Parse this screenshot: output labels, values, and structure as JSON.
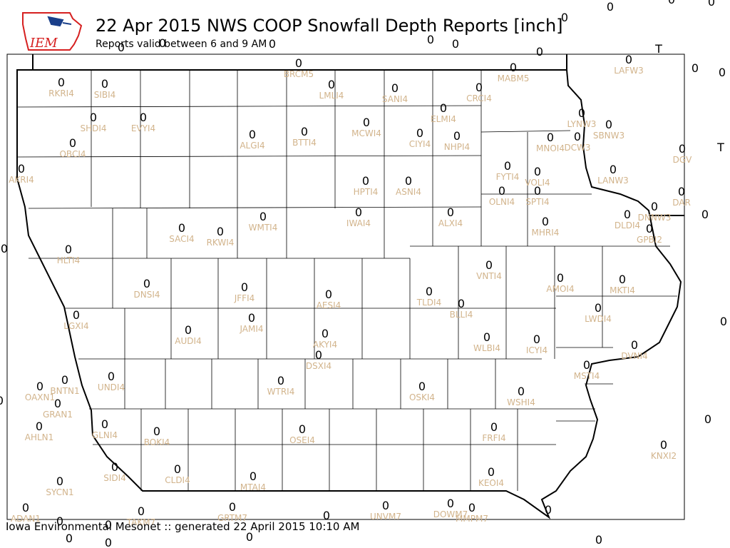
{
  "header": {
    "title": "22 Apr 2015 NWS COOP Snowfall Depth Reports [inch]",
    "subtitle": "Reports valid between 6 and 9 AM",
    "logo_text": "IEM"
  },
  "footer": {
    "text": "Iowa Environmental Mesonet :: generated 22 April 2015 10:10 AM"
  },
  "colors": {
    "label": "#d2b48c",
    "value": "#000000",
    "logo_red": "#d62020",
    "logo_blue": "#1a3f8a"
  },
  "stations": [
    {
      "id": "RKRI4",
      "value": "0"
    },
    {
      "id": "SIBI4",
      "value": "0"
    },
    {
      "id": "SHDI4",
      "value": "0"
    },
    {
      "id": "EVYI4",
      "value": "0"
    },
    {
      "id": "OBCI4",
      "value": "0"
    },
    {
      "id": "AKRI4",
      "value": "0"
    },
    {
      "id": "BRCM5",
      "value": "0"
    },
    {
      "id": "LMLI4",
      "value": "0"
    },
    {
      "id": "SANI4",
      "value": "0"
    },
    {
      "id": "CRCI4",
      "value": "0"
    },
    {
      "id": "MABM5",
      "value": "0"
    },
    {
      "id": "LAFW3",
      "value": "0"
    },
    {
      "id": "ALGI4",
      "value": "0"
    },
    {
      "id": "BTTI4",
      "value": "0"
    },
    {
      "id": "MCWI4",
      "value": "0"
    },
    {
      "id": "ELMI4",
      "value": "0"
    },
    {
      "id": "CIYI4",
      "value": "0"
    },
    {
      "id": "NHPI4",
      "value": "0"
    },
    {
      "id": "MNOI4",
      "value": "0"
    },
    {
      "id": "DCW3",
      "value": "0"
    },
    {
      "id": "LYNW3",
      "value": "0"
    },
    {
      "id": "SBNW3",
      "value": "0"
    },
    {
      "id": "DGV",
      "value": "0"
    },
    {
      "id": "HPTI4",
      "value": "0"
    },
    {
      "id": "ASNI4",
      "value": "0"
    },
    {
      "id": "FYTI4",
      "value": "0"
    },
    {
      "id": "VOLI4",
      "value": "0"
    },
    {
      "id": "OLNI4",
      "value": "0"
    },
    {
      "id": "SPTI4",
      "value": "0"
    },
    {
      "id": "LANW3",
      "value": "0"
    },
    {
      "id": "DAR",
      "value": "0"
    },
    {
      "id": "DNNW3",
      "value": "0"
    },
    {
      "id": "DLDI4",
      "value": "0"
    },
    {
      "id": "GPBI2",
      "value": "0"
    },
    {
      "id": "SACI4",
      "value": "0"
    },
    {
      "id": "RKWI4",
      "value": "0"
    },
    {
      "id": "WMTI4",
      "value": "0"
    },
    {
      "id": "IWAI4",
      "value": "0"
    },
    {
      "id": "ALXI4",
      "value": "0"
    },
    {
      "id": "MHRI4",
      "value": "0"
    },
    {
      "id": "HLTI4",
      "value": "0"
    },
    {
      "id": "VNTI4",
      "value": "0"
    },
    {
      "id": "AMOI4",
      "value": "0"
    },
    {
      "id": "MKTI4",
      "value": "0"
    },
    {
      "id": "DNSI4",
      "value": "0"
    },
    {
      "id": "JFFI4",
      "value": "0"
    },
    {
      "id": "AESI4",
      "value": "0"
    },
    {
      "id": "TLDI4",
      "value": "0"
    },
    {
      "id": "BLLI4",
      "value": "0"
    },
    {
      "id": "LWDI4",
      "value": "0"
    },
    {
      "id": "LGXI4",
      "value": "0"
    },
    {
      "id": "AUDI4",
      "value": "0"
    },
    {
      "id": "JAMI4",
      "value": "0"
    },
    {
      "id": "AKYI4",
      "value": "0"
    },
    {
      "id": "WLBI4",
      "value": "0"
    },
    {
      "id": "ICYI4",
      "value": "0"
    },
    {
      "id": "DVNI4",
      "value": "0"
    },
    {
      "id": "DSXI4",
      "value": "0"
    },
    {
      "id": "MSTI4",
      "value": "0"
    },
    {
      "id": "UNDI4",
      "value": "0"
    },
    {
      "id": "BNTN1",
      "value": "0"
    },
    {
      "id": "OAXN1",
      "value": "0"
    },
    {
      "id": "GRAN1",
      "value": "0"
    },
    {
      "id": "WTRI4",
      "value": "0"
    },
    {
      "id": "OSKI4",
      "value": "0"
    },
    {
      "id": "WSHI4",
      "value": "0"
    },
    {
      "id": "AHLN1",
      "value": "0"
    },
    {
      "id": "GLNI4",
      "value": "0"
    },
    {
      "id": "BOKI4",
      "value": "0"
    },
    {
      "id": "OSEI4",
      "value": "0"
    },
    {
      "id": "FRFI4",
      "value": "0"
    },
    {
      "id": "KNXI2",
      "value": "0"
    },
    {
      "id": "SIDI4",
      "value": "0"
    },
    {
      "id": "CLDI4",
      "value": "0"
    },
    {
      "id": "MTAI4",
      "value": "0"
    },
    {
      "id": "KEOI4",
      "value": "0"
    },
    {
      "id": "SYCN1",
      "value": "0"
    },
    {
      "id": "ADAN1",
      "value": "0"
    },
    {
      "id": "TAKM7",
      "value": "0"
    },
    {
      "id": "GRTM7",
      "value": "0"
    },
    {
      "id": "UNVM7",
      "value": "0"
    },
    {
      "id": "DOWM7",
      "value": "0"
    },
    {
      "id": "MMPM7",
      "value": "0"
    }
  ],
  "extra_values": [
    "0",
    "0",
    "0",
    "0",
    "0",
    "0",
    "0",
    "T",
    "0",
    "0",
    "T",
    "0",
    "0",
    "0",
    "0",
    "0",
    "0",
    "0",
    "0",
    "0",
    "0",
    "0",
    "0",
    "0",
    "0",
    "0",
    "0"
  ]
}
